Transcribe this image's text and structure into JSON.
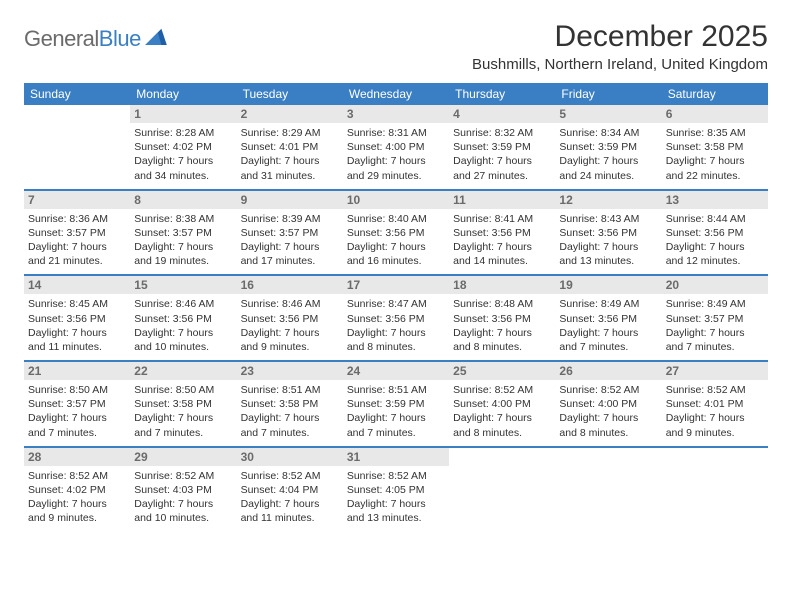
{
  "logo": {
    "text_a": "General",
    "text_b": "Blue"
  },
  "title": "December 2025",
  "location": "Bushmills, Northern Ireland, United Kingdom",
  "colors": {
    "header_bg": "#3a7fc4",
    "header_text": "#ffffff",
    "daynum_bg": "#e8e8e8",
    "daynum_text": "#6b6b6b",
    "week_divider": "#3a7fc4",
    "body_text": "#333333",
    "page_bg": "#ffffff"
  },
  "typography": {
    "title_fontsize": 30,
    "location_fontsize": 15,
    "dayheader_fontsize": 12,
    "daynum_fontsize": 12,
    "info_fontsize": 10.5
  },
  "layout": {
    "columns": 7,
    "rows": 5,
    "cell_min_height": 78
  },
  "day_names": [
    "Sunday",
    "Monday",
    "Tuesday",
    "Wednesday",
    "Thursday",
    "Friday",
    "Saturday"
  ],
  "weeks": [
    [
      {
        "day": "",
        "sunrise": "",
        "sunset": "",
        "daylight": ""
      },
      {
        "day": "1",
        "sunrise": "Sunrise: 8:28 AM",
        "sunset": "Sunset: 4:02 PM",
        "daylight": "Daylight: 7 hours and 34 minutes."
      },
      {
        "day": "2",
        "sunrise": "Sunrise: 8:29 AM",
        "sunset": "Sunset: 4:01 PM",
        "daylight": "Daylight: 7 hours and 31 minutes."
      },
      {
        "day": "3",
        "sunrise": "Sunrise: 8:31 AM",
        "sunset": "Sunset: 4:00 PM",
        "daylight": "Daylight: 7 hours and 29 minutes."
      },
      {
        "day": "4",
        "sunrise": "Sunrise: 8:32 AM",
        "sunset": "Sunset: 3:59 PM",
        "daylight": "Daylight: 7 hours and 27 minutes."
      },
      {
        "day": "5",
        "sunrise": "Sunrise: 8:34 AM",
        "sunset": "Sunset: 3:59 PM",
        "daylight": "Daylight: 7 hours and 24 minutes."
      },
      {
        "day": "6",
        "sunrise": "Sunrise: 8:35 AM",
        "sunset": "Sunset: 3:58 PM",
        "daylight": "Daylight: 7 hours and 22 minutes."
      }
    ],
    [
      {
        "day": "7",
        "sunrise": "Sunrise: 8:36 AM",
        "sunset": "Sunset: 3:57 PM",
        "daylight": "Daylight: 7 hours and 21 minutes."
      },
      {
        "day": "8",
        "sunrise": "Sunrise: 8:38 AM",
        "sunset": "Sunset: 3:57 PM",
        "daylight": "Daylight: 7 hours and 19 minutes."
      },
      {
        "day": "9",
        "sunrise": "Sunrise: 8:39 AM",
        "sunset": "Sunset: 3:57 PM",
        "daylight": "Daylight: 7 hours and 17 minutes."
      },
      {
        "day": "10",
        "sunrise": "Sunrise: 8:40 AM",
        "sunset": "Sunset: 3:56 PM",
        "daylight": "Daylight: 7 hours and 16 minutes."
      },
      {
        "day": "11",
        "sunrise": "Sunrise: 8:41 AM",
        "sunset": "Sunset: 3:56 PM",
        "daylight": "Daylight: 7 hours and 14 minutes."
      },
      {
        "day": "12",
        "sunrise": "Sunrise: 8:43 AM",
        "sunset": "Sunset: 3:56 PM",
        "daylight": "Daylight: 7 hours and 13 minutes."
      },
      {
        "day": "13",
        "sunrise": "Sunrise: 8:44 AM",
        "sunset": "Sunset: 3:56 PM",
        "daylight": "Daylight: 7 hours and 12 minutes."
      }
    ],
    [
      {
        "day": "14",
        "sunrise": "Sunrise: 8:45 AM",
        "sunset": "Sunset: 3:56 PM",
        "daylight": "Daylight: 7 hours and 11 minutes."
      },
      {
        "day": "15",
        "sunrise": "Sunrise: 8:46 AM",
        "sunset": "Sunset: 3:56 PM",
        "daylight": "Daylight: 7 hours and 10 minutes."
      },
      {
        "day": "16",
        "sunrise": "Sunrise: 8:46 AM",
        "sunset": "Sunset: 3:56 PM",
        "daylight": "Daylight: 7 hours and 9 minutes."
      },
      {
        "day": "17",
        "sunrise": "Sunrise: 8:47 AM",
        "sunset": "Sunset: 3:56 PM",
        "daylight": "Daylight: 7 hours and 8 minutes."
      },
      {
        "day": "18",
        "sunrise": "Sunrise: 8:48 AM",
        "sunset": "Sunset: 3:56 PM",
        "daylight": "Daylight: 7 hours and 8 minutes."
      },
      {
        "day": "19",
        "sunrise": "Sunrise: 8:49 AM",
        "sunset": "Sunset: 3:56 PM",
        "daylight": "Daylight: 7 hours and 7 minutes."
      },
      {
        "day": "20",
        "sunrise": "Sunrise: 8:49 AM",
        "sunset": "Sunset: 3:57 PM",
        "daylight": "Daylight: 7 hours and 7 minutes."
      }
    ],
    [
      {
        "day": "21",
        "sunrise": "Sunrise: 8:50 AM",
        "sunset": "Sunset: 3:57 PM",
        "daylight": "Daylight: 7 hours and 7 minutes."
      },
      {
        "day": "22",
        "sunrise": "Sunrise: 8:50 AM",
        "sunset": "Sunset: 3:58 PM",
        "daylight": "Daylight: 7 hours and 7 minutes."
      },
      {
        "day": "23",
        "sunrise": "Sunrise: 8:51 AM",
        "sunset": "Sunset: 3:58 PM",
        "daylight": "Daylight: 7 hours and 7 minutes."
      },
      {
        "day": "24",
        "sunrise": "Sunrise: 8:51 AM",
        "sunset": "Sunset: 3:59 PM",
        "daylight": "Daylight: 7 hours and 7 minutes."
      },
      {
        "day": "25",
        "sunrise": "Sunrise: 8:52 AM",
        "sunset": "Sunset: 4:00 PM",
        "daylight": "Daylight: 7 hours and 8 minutes."
      },
      {
        "day": "26",
        "sunrise": "Sunrise: 8:52 AM",
        "sunset": "Sunset: 4:00 PM",
        "daylight": "Daylight: 7 hours and 8 minutes."
      },
      {
        "day": "27",
        "sunrise": "Sunrise: 8:52 AM",
        "sunset": "Sunset: 4:01 PM",
        "daylight": "Daylight: 7 hours and 9 minutes."
      }
    ],
    [
      {
        "day": "28",
        "sunrise": "Sunrise: 8:52 AM",
        "sunset": "Sunset: 4:02 PM",
        "daylight": "Daylight: 7 hours and 9 minutes."
      },
      {
        "day": "29",
        "sunrise": "Sunrise: 8:52 AM",
        "sunset": "Sunset: 4:03 PM",
        "daylight": "Daylight: 7 hours and 10 minutes."
      },
      {
        "day": "30",
        "sunrise": "Sunrise: 8:52 AM",
        "sunset": "Sunset: 4:04 PM",
        "daylight": "Daylight: 7 hours and 11 minutes."
      },
      {
        "day": "31",
        "sunrise": "Sunrise: 8:52 AM",
        "sunset": "Sunset: 4:05 PM",
        "daylight": "Daylight: 7 hours and 13 minutes."
      },
      {
        "day": "",
        "sunrise": "",
        "sunset": "",
        "daylight": ""
      },
      {
        "day": "",
        "sunrise": "",
        "sunset": "",
        "daylight": ""
      },
      {
        "day": "",
        "sunrise": "",
        "sunset": "",
        "daylight": ""
      }
    ]
  ]
}
